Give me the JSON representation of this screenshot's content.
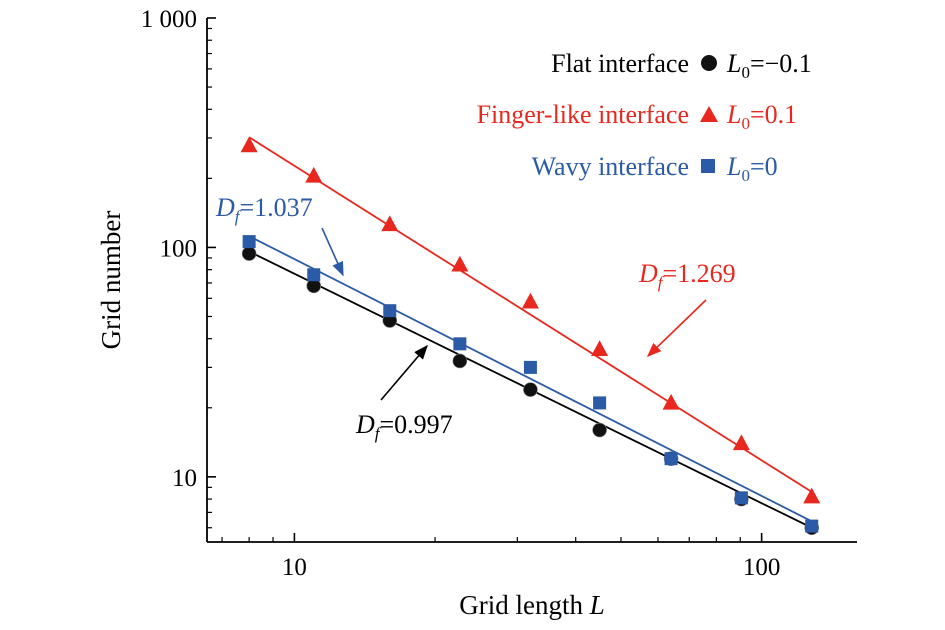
{
  "chart_data": {
    "type": "scatter",
    "xlabel": "Grid length",
    "xlabel_var": "L",
    "ylabel": "Grid number",
    "x_scale": "log",
    "y_scale": "log",
    "xlim": [
      6.5,
      160
    ],
    "ylim": [
      5.2,
      1000
    ],
    "x_ticks": [
      {
        "value": 10,
        "label": "10"
      },
      {
        "value": 100,
        "label": "100"
      }
    ],
    "y_ticks": [
      {
        "value": 10,
        "label": "10"
      },
      {
        "value": 100,
        "label": "100"
      },
      {
        "value": 1000,
        "label": "1 000"
      }
    ],
    "grid": false,
    "legend_position": "top-right",
    "series": [
      {
        "name": "Flat interface",
        "param_label": "=−0.1",
        "marker": "circle",
        "color": "#000000",
        "x": [
          8,
          11,
          16,
          22.6,
          32,
          45,
          64,
          90.5,
          128
        ],
        "y": [
          94,
          68,
          48,
          32,
          24,
          16,
          12,
          8,
          6
        ],
        "fit_x": [
          8,
          128
        ],
        "fit_y": [
          96,
          6
        ],
        "fractal_dimension": "=0.997"
      },
      {
        "name": "Finger-like interface",
        "param_label": "=0.1",
        "marker": "triangle",
        "color": "#e8281e",
        "x": [
          8,
          11,
          16,
          22.6,
          32,
          45,
          64,
          90.5,
          128
        ],
        "y": [
          278,
          205,
          126,
          84,
          58,
          36,
          21,
          14,
          8.2
        ],
        "fit_x": [
          8,
          128
        ],
        "fit_y": [
          302,
          8.6
        ],
        "fractal_dimension": "=1.269"
      },
      {
        "name": "Wavy interface",
        "param_label": "=0",
        "marker": "square",
        "color": "#2b5aa6",
        "x": [
          8,
          11,
          16,
          22.6,
          32,
          45,
          64,
          90.5,
          128
        ],
        "y": [
          106,
          76,
          53,
          38,
          30,
          21,
          12,
          8.1,
          6.1
        ],
        "fit_x": [
          8,
          128
        ],
        "fit_y": [
          112,
          6.4
        ],
        "fractal_dimension": "=1.037"
      }
    ]
  },
  "labels": {
    "d_symbol": "D",
    "d_subscript": "f",
    "l0_symbol": "L",
    "l0_subscript": "0"
  }
}
